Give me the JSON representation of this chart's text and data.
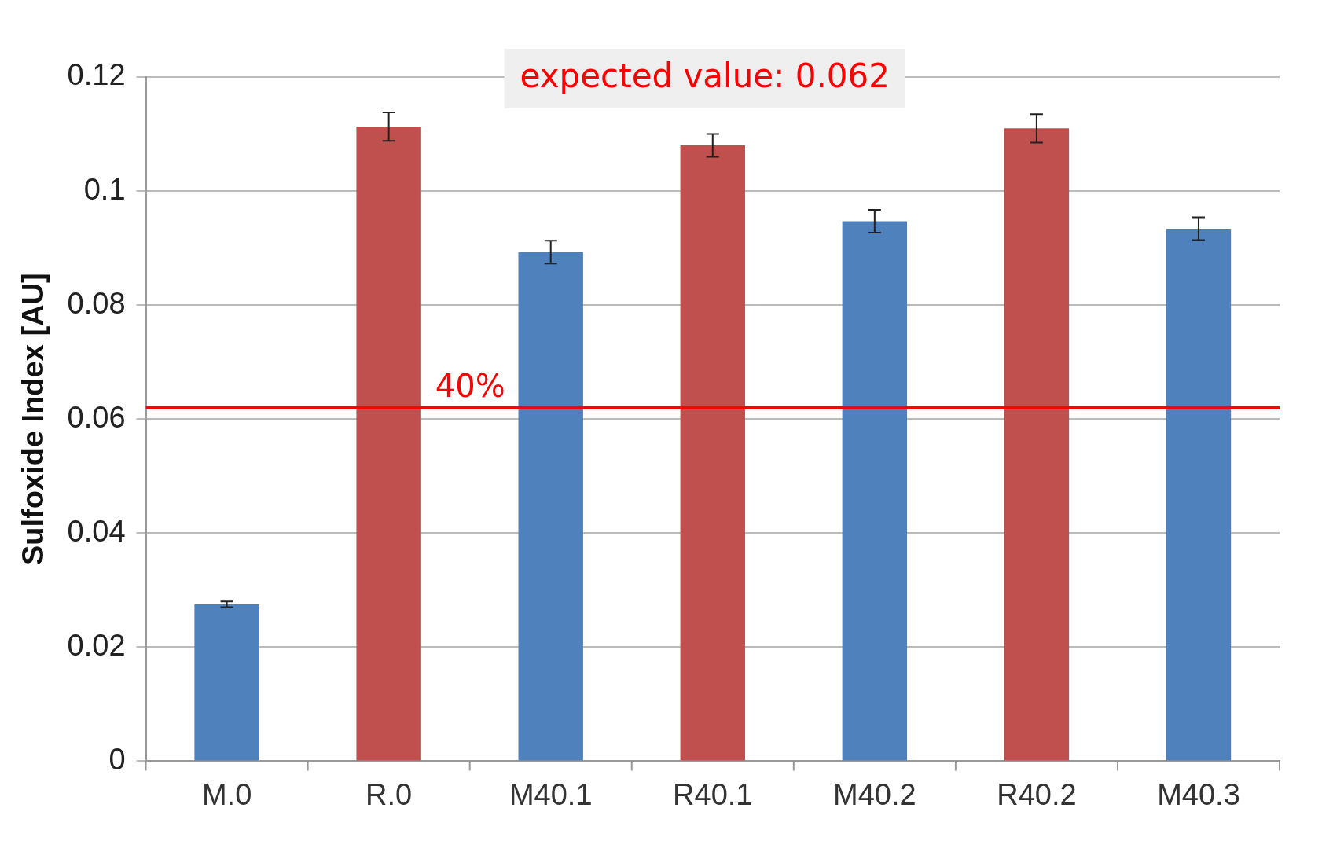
{
  "chart_data": {
    "type": "bar",
    "ylabel": "Sulfoxide Index [AU]",
    "categories": [
      "M.0",
      "R.0",
      "M40.1",
      "R40.1",
      "M40.2",
      "R40.2",
      "M40.3"
    ],
    "values": [
      0.0275,
      0.1113,
      0.0893,
      0.108,
      0.0947,
      0.111,
      0.0934
    ],
    "errors": [
      0.0005,
      0.0025,
      0.002,
      0.002,
      0.002,
      0.0025,
      0.002
    ],
    "colors": [
      "#4f81bd",
      "#c0504d",
      "#4f81bd",
      "#c0504d",
      "#4f81bd",
      "#c0504d",
      "#4f81bd"
    ],
    "ylim": [
      0,
      0.12
    ],
    "yticks": [
      0,
      0.02,
      0.04,
      0.06,
      0.08,
      0.1,
      0.12
    ],
    "grid": "y",
    "legend": false,
    "ref_lines": [
      {
        "axis": "y",
        "value": 0.062,
        "color": "#ff0000"
      }
    ],
    "annotations": [
      "expected value: 0.062",
      "40%"
    ]
  }
}
